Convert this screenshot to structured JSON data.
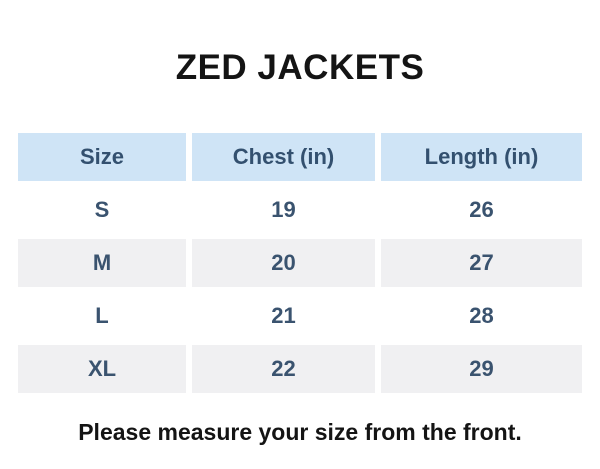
{
  "page": {
    "title": "ZED JACKETS",
    "footer_note": "Please measure your size from the front."
  },
  "size_table": {
    "headers": [
      "Size",
      "Chest (in)",
      "Length (in)"
    ],
    "rows": [
      [
        "S",
        "19",
        "26"
      ],
      [
        "M",
        "20",
        "27"
      ],
      [
        "L",
        "21",
        "28"
      ],
      [
        "XL",
        "22",
        "29"
      ]
    ]
  },
  "chart_data": {
    "type": "table",
    "title": "ZED JACKETS",
    "columns": [
      "Size",
      "Chest (in)",
      "Length (in)"
    ],
    "rows": [
      [
        "S",
        19,
        26
      ],
      [
        "M",
        20,
        27
      ],
      [
        "L",
        21,
        28
      ],
      [
        "XL",
        22,
        29
      ]
    ],
    "note": "Please measure your size from the front.",
    "layout": {
      "alternating_row_shading": true,
      "shaded_rows": [
        "M",
        "XL"
      ]
    }
  },
  "colors": {
    "header_bg": "#cfe4f6",
    "header_text": "#33506f",
    "row_alt_bg": "#f0f0f2",
    "body_text": "#3a536f",
    "title_text": "#141414",
    "page_bg": "#ffffff"
  }
}
